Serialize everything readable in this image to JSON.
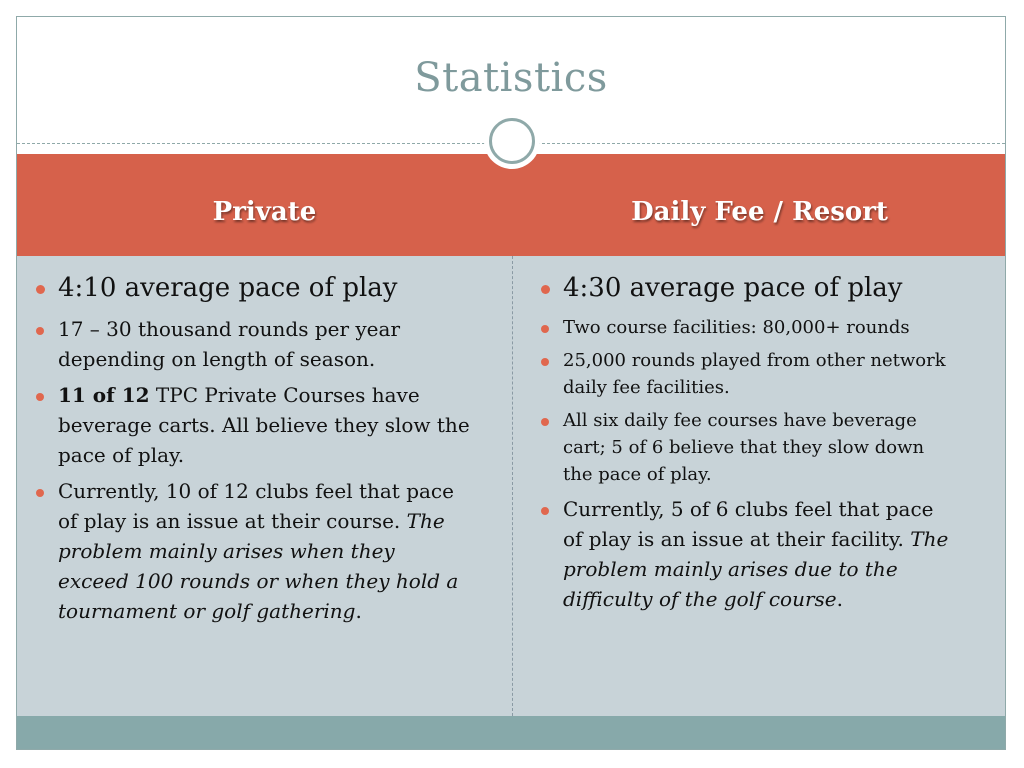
{
  "slide": {
    "title": "Statistics",
    "columns": [
      {
        "heading": "Private",
        "items": [
          {
            "text": "4:10 average pace of play"
          },
          {
            "text": "17 – 30 thousand rounds per year depending on length of season."
          },
          {
            "bold": "11 of 12",
            "text": " TPC Private Courses have beverage carts.  All believe they slow the pace of play."
          },
          {
            "text": "Currently, 10 of 12 clubs feel that pace of play is an issue at their course.  ",
            "italic": "The problem mainly arises when they exceed 100 rounds or when they hold a tournament or golf gathering",
            "tail": "."
          }
        ]
      },
      {
        "heading": "Daily Fee / Resort",
        "items": [
          {
            "text": "4:30 average pace of play"
          },
          {
            "text": "Two course facilities: 80,000+ rounds"
          },
          {
            "text": "25,000 rounds played from other network daily fee facilities."
          },
          {
            "text": "All six daily fee courses have beverage cart; 5 of 6 believe that they slow down the pace of play."
          },
          {
            "text": "Currently, 5 of 6 clubs feel that pace of play is an issue at their facility.  ",
            "italic": "The problem mainly arises due to the difficulty of the golf course",
            "tail": "."
          }
        ]
      }
    ],
    "colors": {
      "header_band": "#d6614b",
      "body_area": "#c8d3d8",
      "footer_band": "#87a9aa",
      "title": "#7f9a9c",
      "bullet": "#e0674e"
    }
  }
}
